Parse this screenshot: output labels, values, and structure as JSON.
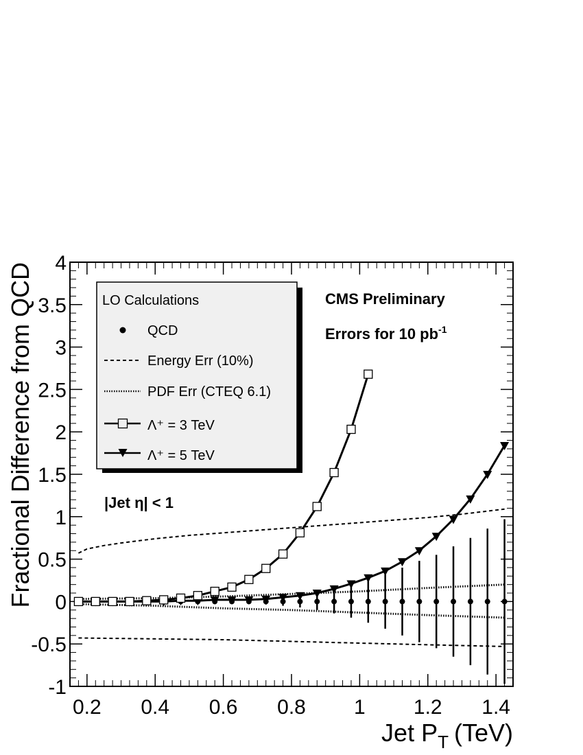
{
  "chart_data": {
    "type": "line",
    "xlabel": "Jet P",
    "xlabel_sub": "T",
    "xlabel_unit": "(TeV)",
    "ylabel": "Fractional Difference from QCD",
    "xlim": [
      0.15,
      1.45
    ],
    "ylim": [
      -1,
      4
    ],
    "x_ticks": [
      0.2,
      0.4,
      0.6,
      0.8,
      1.0,
      1.2,
      1.4
    ],
    "x_tick_labels": [
      "0.2",
      "0.4",
      "0.6",
      "0.8",
      "1",
      "1.2",
      "1.4"
    ],
    "y_ticks": [
      -1,
      -0.5,
      0,
      0.5,
      1,
      1.5,
      2,
      2.5,
      3,
      3.5,
      4
    ],
    "y_tick_labels": [
      "-1",
      "-0.5",
      "0",
      "0.5",
      "1",
      "1.5",
      "2",
      "2.5",
      "3",
      "3.5",
      "4"
    ],
    "legend": {
      "header": "LO Calculations",
      "entries": [
        {
          "label": "QCD",
          "style": "dot"
        },
        {
          "label": "Energy Err (10%)",
          "style": "dashed"
        },
        {
          "label": "PDF Err (CTEQ 6.1)",
          "style": "dotted"
        },
        {
          "label": "Λ⁺ = 3 TeV",
          "style": "line-open-square"
        },
        {
          "label": "Λ⁺ = 5 TeV",
          "style": "line-filled-triangle"
        }
      ]
    },
    "annotations": {
      "cms": "CMS Preliminary",
      "errors": "Errors for 10 pb",
      "errors_sup": "-1",
      "eta_cut": "|Jet η| < 1"
    },
    "series": {
      "qcd": {
        "name": "QCD",
        "x": [
          0.175,
          0.225,
          0.275,
          0.325,
          0.375,
          0.425,
          0.475,
          0.525,
          0.575,
          0.625,
          0.675,
          0.725,
          0.775,
          0.825,
          0.875,
          0.925,
          0.975,
          1.025,
          1.075,
          1.125,
          1.175,
          1.225,
          1.275,
          1.325,
          1.375,
          1.425
        ],
        "y": [
          0,
          0,
          0,
          0,
          0,
          0,
          0,
          0,
          0,
          0,
          0,
          0,
          0,
          0,
          0,
          0,
          0,
          0,
          0,
          0,
          0,
          0,
          0,
          0,
          0,
          0
        ],
        "err": [
          0.005,
          0.005,
          0.005,
          0.005,
          0.006,
          0.008,
          0.01,
          0.012,
          0.016,
          0.02,
          0.025,
          0.035,
          0.05,
          0.07,
          0.1,
          0.14,
          0.19,
          0.25,
          0.32,
          0.4,
          0.48,
          0.55,
          0.65,
          0.75,
          0.86,
          0.97
        ]
      },
      "energy_err_upper": {
        "name": "Energy Err (10%) upper",
        "x": [
          0.175,
          0.2,
          0.25,
          0.3,
          0.4,
          0.5,
          0.6,
          0.7,
          0.8,
          0.9,
          1.0,
          1.1,
          1.2,
          1.3,
          1.425
        ],
        "y": [
          0.57,
          0.62,
          0.66,
          0.69,
          0.74,
          0.78,
          0.81,
          0.84,
          0.87,
          0.9,
          0.93,
          0.96,
          0.99,
          1.03,
          1.09
        ]
      },
      "energy_err_lower": {
        "name": "Energy Err (10%) lower",
        "x": [
          0.175,
          0.4,
          0.6,
          0.8,
          1.0,
          1.2,
          1.425
        ],
        "y": [
          -0.43,
          -0.44,
          -0.45,
          -0.47,
          -0.49,
          -0.51,
          -0.53
        ]
      },
      "pdf_err_upper": {
        "name": "PDF Err (CTEQ 6.1) upper",
        "x": [
          0.175,
          0.4,
          0.6,
          0.8,
          1.0,
          1.2,
          1.425
        ],
        "y": [
          0.03,
          0.04,
          0.06,
          0.09,
          0.12,
          0.16,
          0.2
        ]
      },
      "pdf_err_lower": {
        "name": "PDF Err (CTEQ 6.1) lower",
        "x": [
          0.175,
          0.4,
          0.6,
          0.8,
          1.0,
          1.2,
          1.425
        ],
        "y": [
          -0.03,
          -0.05,
          -0.08,
          -0.1,
          -0.13,
          -0.16,
          -0.19
        ]
      },
      "lambda3": {
        "name": "Λ⁺ = 3 TeV",
        "x": [
          0.175,
          0.225,
          0.275,
          0.325,
          0.375,
          0.425,
          0.475,
          0.525,
          0.575,
          0.625,
          0.675,
          0.725,
          0.775,
          0.825,
          0.875,
          0.925,
          0.975,
          1.025
        ],
        "y": [
          0.0,
          0.0,
          0.0,
          0.0,
          0.01,
          0.02,
          0.04,
          0.07,
          0.12,
          0.17,
          0.26,
          0.39,
          0.56,
          0.81,
          1.12,
          1.52,
          2.03,
          2.68
        ]
      },
      "lambda5": {
        "name": "Λ⁺ = 5 TeV",
        "x": [
          0.175,
          0.225,
          0.275,
          0.325,
          0.375,
          0.425,
          0.475,
          0.525,
          0.575,
          0.625,
          0.675,
          0.725,
          0.775,
          0.825,
          0.875,
          0.925,
          0.975,
          1.025,
          1.075,
          1.125,
          1.175,
          1.225,
          1.275,
          1.325,
          1.375,
          1.425
        ],
        "y": [
          0.0,
          0.0,
          0.0,
          0.0,
          0.0,
          0.0,
          0.01,
          0.01,
          0.02,
          0.02,
          0.02,
          0.03,
          0.05,
          0.07,
          0.1,
          0.15,
          0.21,
          0.28,
          0.36,
          0.47,
          0.6,
          0.77,
          0.97,
          1.21,
          1.5,
          1.84
        ]
      }
    }
  }
}
